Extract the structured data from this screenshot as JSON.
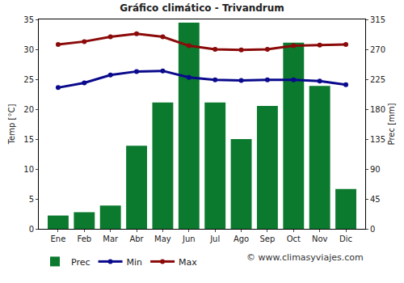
{
  "chart_data": {
    "type": "bar",
    "title": "Gráfico climático - Trivandrum",
    "y_label": "Temp [°C]",
    "y2_label": "Prec [mm]",
    "annotations": [
      "© www.climasyviajes.com"
    ],
    "categories": [
      "Ene",
      "Feb",
      "Mar",
      "Abr",
      "May",
      "Jun",
      "Jul",
      "Ago",
      "Sep",
      "Oct",
      "Nov",
      "Dic"
    ],
    "series": [
      {
        "name": "Prec",
        "type": "bar",
        "axis": "y2",
        "color": "#0b7a2e",
        "values": [
          20,
          25,
          35,
          125,
          190,
          310,
          190,
          135,
          185,
          280,
          215,
          60
        ]
      },
      {
        "name": "Min",
        "type": "line",
        "color": "#0a0a8c",
        "marker": "circle",
        "values": [
          23.6,
          24.4,
          25.7,
          26.3,
          26.4,
          25.3,
          24.9,
          24.8,
          24.9,
          24.9,
          24.7,
          24.1
        ]
      },
      {
        "name": "Max",
        "type": "line",
        "color": "#8b0a0a",
        "marker": "circle",
        "values": [
          30.8,
          31.3,
          32.1,
          32.6,
          32.1,
          30.6,
          30.0,
          29.9,
          30.0,
          30.6,
          30.7,
          30.8
        ]
      }
    ],
    "ylim": [
      0,
      35
    ],
    "yticks": [
      0,
      5,
      10,
      15,
      20,
      25,
      30,
      35
    ],
    "y2lim": [
      0,
      315
    ],
    "y2ticks": [
      0,
      45,
      90,
      135,
      180,
      225,
      270,
      315
    ],
    "grid": false,
    "legend": "bottom"
  }
}
